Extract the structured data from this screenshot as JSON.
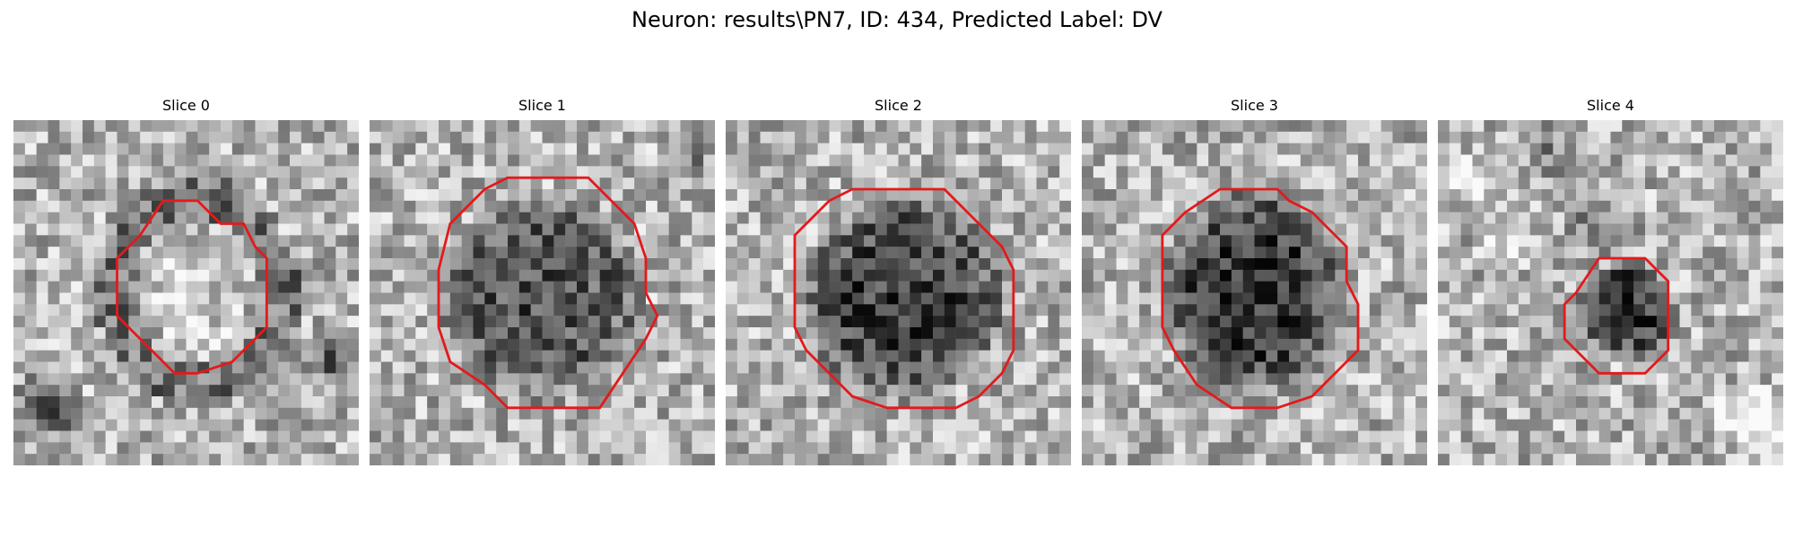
{
  "figure": {
    "title": "Neuron: results\\PN7, ID: 434, Predicted Label: DV",
    "contour_color": "#e31a1c",
    "image_colormap": "gray"
  },
  "panels": [
    {
      "title": "Slice 0"
    },
    {
      "title": "Slice 1"
    },
    {
      "title": "Slice 2"
    },
    {
      "title": "Slice 3"
    },
    {
      "title": "Slice 4"
    }
  ]
}
